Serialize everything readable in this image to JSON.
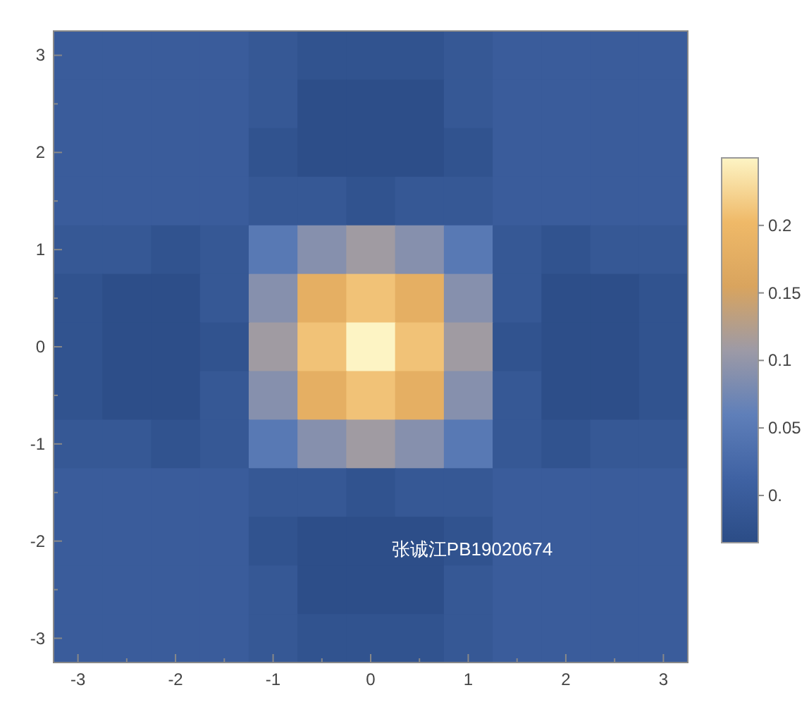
{
  "chart_data": {
    "type": "heatmap",
    "categories": [
      "-3",
      null,
      "-2",
      null,
      "-1",
      null,
      "0",
      null,
      "1",
      null,
      "2",
      null,
      "3"
    ],
    "y_categories": [
      "3",
      null,
      "2",
      null,
      "1",
      null,
      "0",
      null,
      "-1",
      null,
      "-2",
      null,
      "-3"
    ],
    "cells": [
      [
        0.0,
        0.0,
        0.0,
        0.0,
        -0.01,
        -0.02,
        -0.02,
        -0.02,
        -0.01,
        0.0,
        0.0,
        0.0,
        0.0
      ],
      [
        0.0,
        0.0,
        0.0,
        0.0,
        -0.01,
        -0.03,
        -0.03,
        -0.03,
        -0.01,
        0.0,
        0.0,
        0.0,
        0.0
      ],
      [
        0.0,
        0.0,
        0.0,
        0.0,
        -0.02,
        -0.03,
        -0.03,
        -0.03,
        -0.02,
        0.0,
        0.0,
        0.0,
        0.0
      ],
      [
        0.0,
        0.0,
        0.0,
        0.0,
        -0.01,
        -0.01,
        -0.02,
        -0.01,
        -0.01,
        0.0,
        0.0,
        0.0,
        0.0
      ],
      [
        -0.01,
        -0.01,
        -0.02,
        -0.01,
        0.05,
        0.09,
        0.11,
        0.09,
        0.05,
        -0.01,
        -0.02,
        -0.01,
        -0.01
      ],
      [
        -0.02,
        -0.03,
        -0.03,
        -0.01,
        0.09,
        0.18,
        0.21,
        0.18,
        0.09,
        -0.01,
        -0.03,
        -0.03,
        -0.02
      ],
      [
        -0.02,
        -0.03,
        -0.03,
        -0.02,
        0.11,
        0.21,
        0.25,
        0.21,
        0.11,
        -0.02,
        -0.03,
        -0.03,
        -0.02
      ],
      [
        -0.02,
        -0.03,
        -0.03,
        -0.01,
        0.09,
        0.18,
        0.21,
        0.18,
        0.09,
        -0.01,
        -0.03,
        -0.03,
        -0.02
      ],
      [
        -0.01,
        -0.01,
        -0.02,
        -0.01,
        0.05,
        0.09,
        0.11,
        0.09,
        0.05,
        -0.01,
        -0.02,
        -0.01,
        -0.01
      ],
      [
        0.0,
        0.0,
        0.0,
        0.0,
        -0.01,
        -0.01,
        -0.02,
        -0.01,
        -0.01,
        0.0,
        0.0,
        0.0,
        0.0
      ],
      [
        0.0,
        0.0,
        0.0,
        0.0,
        -0.02,
        -0.03,
        -0.03,
        -0.03,
        -0.02,
        0.0,
        0.0,
        0.0,
        0.0
      ],
      [
        0.0,
        0.0,
        0.0,
        0.0,
        -0.01,
        -0.03,
        -0.03,
        -0.03,
        -0.01,
        0.0,
        0.0,
        0.0,
        0.0
      ],
      [
        0.0,
        0.0,
        0.0,
        0.0,
        -0.01,
        -0.02,
        -0.02,
        -0.02,
        -0.01,
        0.0,
        0.0,
        0.0,
        0.0
      ]
    ],
    "clim": [
      -0.035,
      0.25
    ],
    "cticks": [
      {
        "value": 0,
        "label": "0."
      },
      0.05,
      0.1,
      0.15,
      0.2
    ],
    "annotations": [
      "张诚江PB19020674"
    ]
  }
}
